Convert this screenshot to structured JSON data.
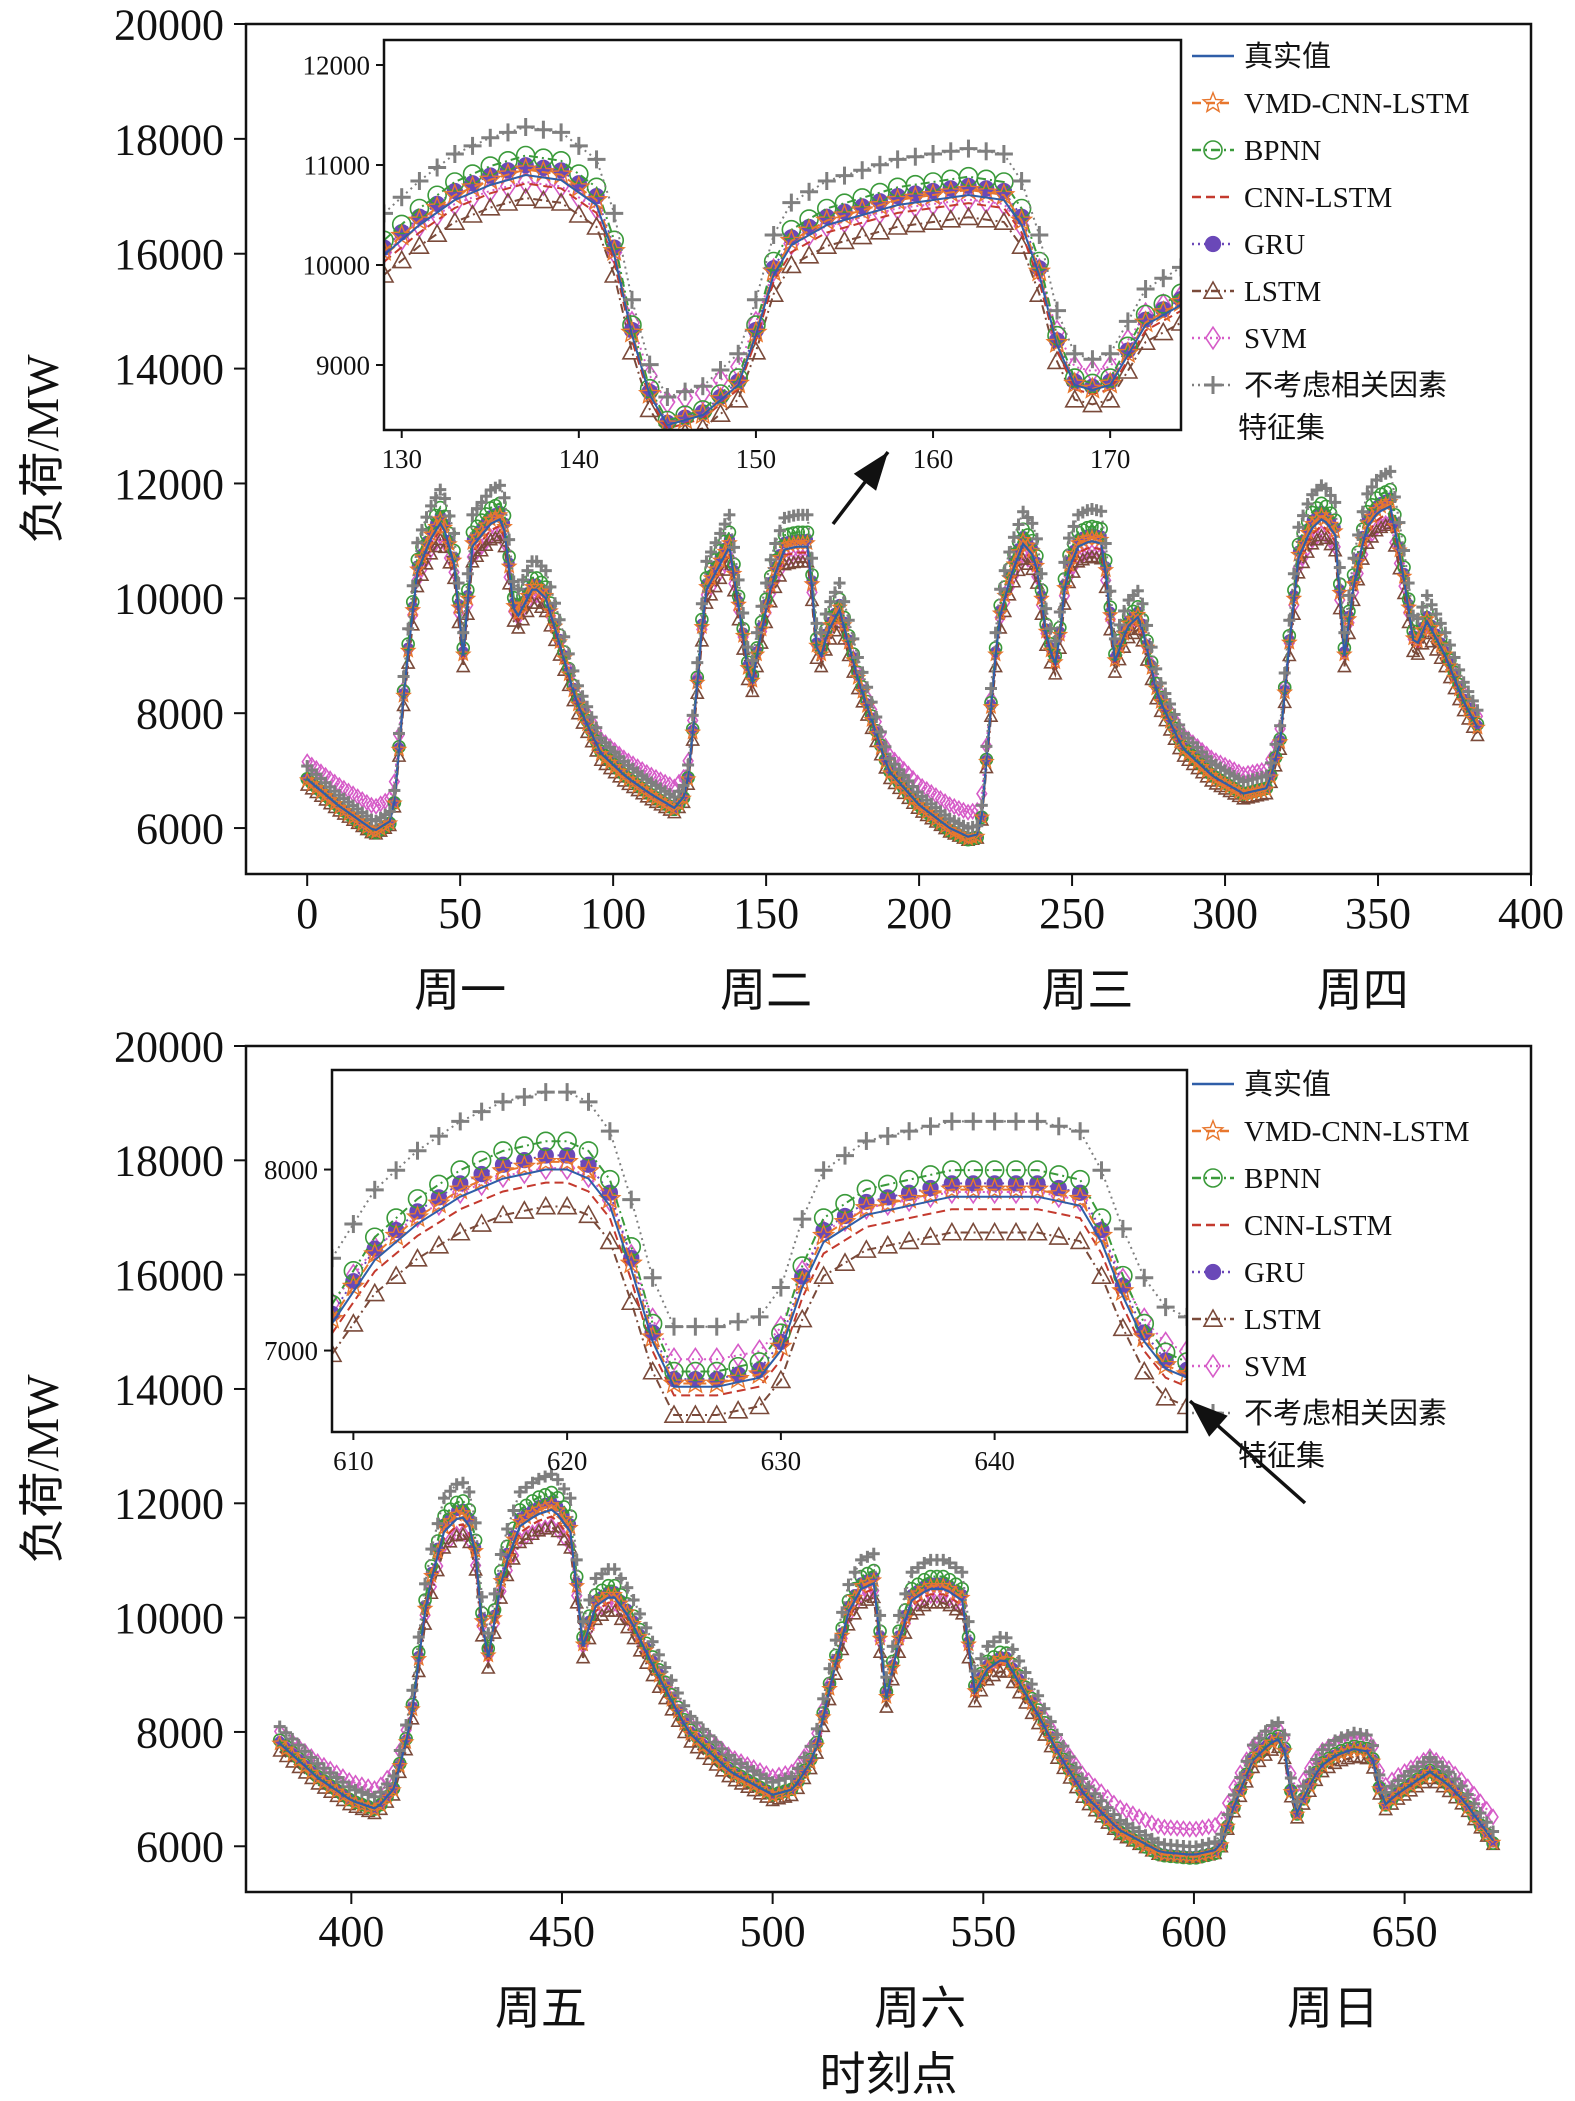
{
  "colors": {
    "真实值": "#2f5ea8",
    "VMD-CNN-LSTM": "#e8772e",
    "BPNN": "#3a9a3a",
    "CNN-LSTM": "#c43a2e",
    "GRU": "#6a48b8",
    "LSTM": "#7a4a3a",
    "SVM": "#d65cc8",
    "不考虑相关因素特征集": "#7f7f7f",
    "arrow": "#111111"
  },
  "chart_data": [
    {
      "type": "line",
      "xlabel": "",
      "ylabel": "负荷/MW",
      "xlim": [
        -20,
        400
      ],
      "ylim": [
        5200,
        20000
      ],
      "xticks": [
        0,
        50,
        100,
        150,
        200,
        250,
        300,
        350,
        400
      ],
      "yticks": [
        6000,
        8000,
        10000,
        12000,
        14000,
        16000,
        18000,
        20000
      ],
      "day_labels": [
        {
          "x": 50,
          "label": "周一"
        },
        {
          "x": 150,
          "label": "周二"
        },
        {
          "x": 255,
          "label": "周三"
        },
        {
          "x": 345,
          "label": "周四"
        }
      ],
      "legend": [
        "真实值",
        "VMD-CNN-LSTM",
        "BPNN",
        "CNN-LSTM",
        "GRU",
        "LSTM",
        "SVM",
        "不考虑相关因素特征集"
      ],
      "legend_position": "top-right",
      "grid": false,
      "base_series": {
        "name": "真实值",
        "x": [
          0,
          10,
          22,
          28,
          32,
          36,
          40,
          44,
          48,
          51,
          54,
          57,
          60,
          64,
          68,
          71,
          74,
          78,
          82,
          88,
          96,
          104,
          112,
          120,
          124,
          127,
          130,
          134,
          138,
          142,
          145,
          148,
          152,
          156,
          160,
          164,
          167,
          170,
          174,
          180,
          190,
          200,
          210,
          216,
          220,
          223,
          226,
          230,
          234,
          238,
          242,
          245,
          248,
          252,
          256,
          260,
          264,
          268,
          272,
          278,
          286,
          296,
          306,
          314,
          318,
          321,
          324,
          328,
          332,
          336,
          339,
          342,
          346,
          350,
          354,
          358,
          362,
          366,
          372,
          378,
          383
        ],
        "y": [
          6850,
          6400,
          5950,
          6150,
          8600,
          10450,
          11000,
          11350,
          10600,
          9000,
          10900,
          11100,
          11300,
          11400,
          9600,
          9900,
          10200,
          10000,
          9300,
          8200,
          7300,
          6900,
          6600,
          6350,
          6600,
          8200,
          10100,
          10500,
          10900,
          9500,
          8400,
          9300,
          10300,
          10850,
          10900,
          10900,
          8800,
          9400,
          9800,
          8600,
          7000,
          6400,
          6000,
          5850,
          5900,
          7800,
          9600,
          10400,
          10950,
          10700,
          9200,
          8800,
          10400,
          10900,
          11000,
          10950,
          8900,
          9500,
          9700,
          8300,
          7400,
          6900,
          6600,
          6700,
          7500,
          9200,
          10700,
          11200,
          11400,
          11100,
          9000,
          10200,
          11200,
          11500,
          11600,
          10500,
          9100,
          9600,
          9000,
          8200,
          7700
        ]
      },
      "series": [
        {
          "name": "真实值",
          "style": "solid",
          "marker": "none"
        },
        {
          "name": "VMD-CNN-LSTM",
          "style": "dashed",
          "marker": "star"
        },
        {
          "name": "BPNN",
          "style": "dashdot",
          "marker": "circle"
        },
        {
          "name": "CNN-LSTM",
          "style": "dashed",
          "marker": "none"
        },
        {
          "name": "GRU",
          "style": "dotted",
          "marker": "dot"
        },
        {
          "name": "LSTM",
          "style": "dashdot",
          "marker": "triangle"
        },
        {
          "name": "SVM",
          "style": "dotted",
          "marker": "diamond"
        },
        {
          "name": "不考虑相关因素特征集",
          "style": "dotted",
          "marker": "plus"
        }
      ],
      "inset": {
        "xlim": [
          129,
          174
        ],
        "ylim": [
          8350,
          12250
        ],
        "xticks": [
          130,
          140,
          150,
          160,
          170
        ],
        "yticks": [
          9000,
          10000,
          11000,
          12000
        ],
        "base_series": {
          "name": "真实值",
          "x": [
            129,
            131,
            133,
            135,
            137,
            139,
            141,
            142,
            143,
            144,
            145,
            147,
            149,
            150,
            151,
            152,
            154,
            156,
            158,
            160,
            162,
            164,
            165,
            166,
            167,
            168,
            169,
            170,
            171,
            172,
            174
          ],
          "y": [
            10100,
            10400,
            10650,
            10800,
            10900,
            10850,
            10600,
            10100,
            9300,
            8700,
            8400,
            8500,
            8800,
            9300,
            9900,
            10200,
            10400,
            10500,
            10600,
            10650,
            10700,
            10650,
            10400,
            9900,
            9200,
            8800,
            8750,
            8800,
            9100,
            9400,
            9600
          ]
        }
      }
    },
    {
      "type": "line",
      "xlabel": "时刻点",
      "ylabel": "负荷/MW",
      "xlim": [
        375,
        680
      ],
      "ylim": [
        5200,
        20000
      ],
      "xticks": [
        400,
        450,
        500,
        550,
        600,
        650
      ],
      "yticks": [
        6000,
        8000,
        10000,
        12000,
        14000,
        16000,
        18000,
        20000
      ],
      "day_labels": [
        {
          "x": 445,
          "label": "周五"
        },
        {
          "x": 535,
          "label": "周六"
        },
        {
          "x": 633,
          "label": "周日"
        }
      ],
      "legend": [
        "真实值",
        "VMD-CNN-LSTM",
        "BPNN",
        "CNN-LSTM",
        "GRU",
        "LSTM",
        "SVM",
        "不考虑相关因素特征集"
      ],
      "legend_position": "top-right",
      "grid": false,
      "base_series": {
        "name": "真实值",
        "x": [
          383,
          392,
          400,
          406,
          410,
          414,
          418,
          422,
          426,
          429,
          432,
          436,
          440,
          444,
          448,
          452,
          455,
          458,
          462,
          466,
          472,
          480,
          490,
          500,
          505,
          510,
          514,
          518,
          521,
          524,
          527,
          530,
          533,
          537,
          541,
          545,
          548,
          551,
          555,
          559,
          563,
          568,
          574,
          582,
          592,
          600,
          606,
          610,
          614,
          618,
          621,
          624,
          627,
          630,
          634,
          638,
          642,
          645,
          648,
          652,
          656,
          660,
          664,
          668,
          672
        ],
        "y": [
          7800,
          7200,
          6800,
          6650,
          7000,
          8100,
          10400,
          11500,
          11800,
          11500,
          9100,
          10800,
          11600,
          11800,
          11900,
          11500,
          9500,
          10200,
          10400,
          10000,
          9100,
          8000,
          7300,
          6900,
          7000,
          7600,
          8900,
          10100,
          10500,
          10600,
          8600,
          9600,
          10300,
          10500,
          10500,
          10300,
          8700,
          9100,
          9300,
          8800,
          8300,
          7600,
          6900,
          6300,
          5900,
          5850,
          5950,
          6800,
          7500,
          7800,
          7900,
          6500,
          7000,
          7400,
          7600,
          7700,
          7650,
          6700,
          6900,
          7100,
          7300,
          7100,
          6800,
          6400,
          6000
        ]
      },
      "series": [
        {
          "name": "真实值",
          "style": "solid",
          "marker": "none"
        },
        {
          "name": "VMD-CNN-LSTM",
          "style": "dashed",
          "marker": "star"
        },
        {
          "name": "BPNN",
          "style": "dashdot",
          "marker": "circle"
        },
        {
          "name": "CNN-LSTM",
          "style": "dashed",
          "marker": "none"
        },
        {
          "name": "GRU",
          "style": "dotted",
          "marker": "dot"
        },
        {
          "name": "LSTM",
          "style": "dashdot",
          "marker": "triangle"
        },
        {
          "name": "SVM",
          "style": "dotted",
          "marker": "diamond"
        },
        {
          "name": "不考虑相关因素特征集",
          "style": "dotted",
          "marker": "plus"
        }
      ],
      "inset": {
        "xlim": [
          609,
          649
        ],
        "ylim": [
          6550,
          8550
        ],
        "xticks": [
          610,
          620,
          630,
          640
        ],
        "yticks": [
          7000,
          8000
        ],
        "base_series": {
          "name": "真实值",
          "x": [
            609,
            611,
            613,
            615,
            617,
            619,
            620,
            621,
            622,
            623,
            624,
            625,
            627,
            629,
            630,
            631,
            632,
            634,
            636,
            638,
            640,
            642,
            644,
            645,
            646,
            647,
            648,
            649
          ],
          "y": [
            7150,
            7500,
            7700,
            7850,
            7950,
            8000,
            8000,
            7950,
            7800,
            7450,
            7050,
            6800,
            6800,
            6850,
            7000,
            7350,
            7600,
            7750,
            7800,
            7850,
            7850,
            7850,
            7800,
            7600,
            7300,
            7050,
            6900,
            6850
          ]
        }
      }
    }
  ]
}
